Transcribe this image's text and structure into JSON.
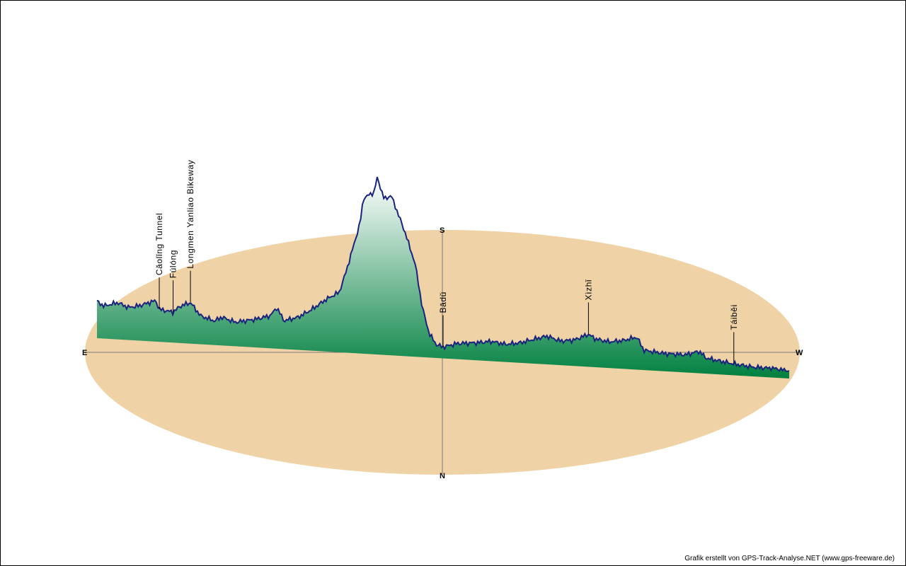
{
  "credit": "Grafik erstellt von GPS-Track-Analyse.NET (www.gps-freeware.de)",
  "colors": {
    "ground": "#efd3a6",
    "track": "#1a237e",
    "fill_low": "#00803f",
    "fill_high": "#ffffff",
    "axis": "#777777"
  },
  "chart_data": {
    "type": "area",
    "title": "",
    "compass": {
      "east": "E",
      "west": "W",
      "south": "S",
      "north": "N"
    },
    "places": [
      {
        "name": "Cǎolǐng Tunnel",
        "at": 0.09
      },
      {
        "name": "Fúlóng",
        "at": 0.11
      },
      {
        "name": "Longmen Yanliao Bikeway",
        "at": 0.135
      },
      {
        "name": "Bādǔ",
        "at": 0.5
      },
      {
        "name": "Xìzhǐ",
        "at": 0.71
      },
      {
        "name": "Táiběi",
        "at": 0.92
      }
    ],
    "profile_note": "relative elevation along the track, East (left) to West (right)",
    "profile": [
      [
        0.0,
        0.14
      ],
      [
        0.01,
        0.12
      ],
      [
        0.03,
        0.14
      ],
      [
        0.045,
        0.12
      ],
      [
        0.06,
        0.13
      ],
      [
        0.085,
        0.16
      ],
      [
        0.09,
        0.12
      ],
      [
        0.11,
        0.11
      ],
      [
        0.12,
        0.14
      ],
      [
        0.135,
        0.16
      ],
      [
        0.15,
        0.1
      ],
      [
        0.17,
        0.08
      ],
      [
        0.18,
        0.1
      ],
      [
        0.2,
        0.08
      ],
      [
        0.23,
        0.1
      ],
      [
        0.25,
        0.12
      ],
      [
        0.26,
        0.16
      ],
      [
        0.27,
        0.1
      ],
      [
        0.29,
        0.12
      ],
      [
        0.31,
        0.16
      ],
      [
        0.33,
        0.21
      ],
      [
        0.35,
        0.25
      ],
      [
        0.36,
        0.35
      ],
      [
        0.38,
        0.58
      ],
      [
        0.385,
        0.7
      ],
      [
        0.4,
        0.73
      ],
      [
        0.405,
        0.8
      ],
      [
        0.41,
        0.75
      ],
      [
        0.415,
        0.7
      ],
      [
        0.425,
        0.72
      ],
      [
        0.445,
        0.55
      ],
      [
        0.46,
        0.4
      ],
      [
        0.47,
        0.2
      ],
      [
        0.48,
        0.08
      ],
      [
        0.49,
        0.03
      ],
      [
        0.5,
        0.02
      ],
      [
        0.52,
        0.04
      ],
      [
        0.55,
        0.05
      ],
      [
        0.57,
        0.06
      ],
      [
        0.59,
        0.05
      ],
      [
        0.61,
        0.06
      ],
      [
        0.63,
        0.08
      ],
      [
        0.65,
        0.1
      ],
      [
        0.67,
        0.08
      ],
      [
        0.69,
        0.09
      ],
      [
        0.71,
        0.12
      ],
      [
        0.72,
        0.1
      ],
      [
        0.74,
        0.09
      ],
      [
        0.76,
        0.1
      ],
      [
        0.78,
        0.12
      ],
      [
        0.79,
        0.06
      ],
      [
        0.82,
        0.05
      ],
      [
        0.85,
        0.05
      ],
      [
        0.87,
        0.07
      ],
      [
        0.88,
        0.04
      ],
      [
        0.9,
        0.03
      ],
      [
        0.92,
        0.02
      ],
      [
        0.95,
        0.01
      ],
      [
        0.98,
        0.01
      ],
      [
        1.0,
        0.0
      ]
    ]
  }
}
